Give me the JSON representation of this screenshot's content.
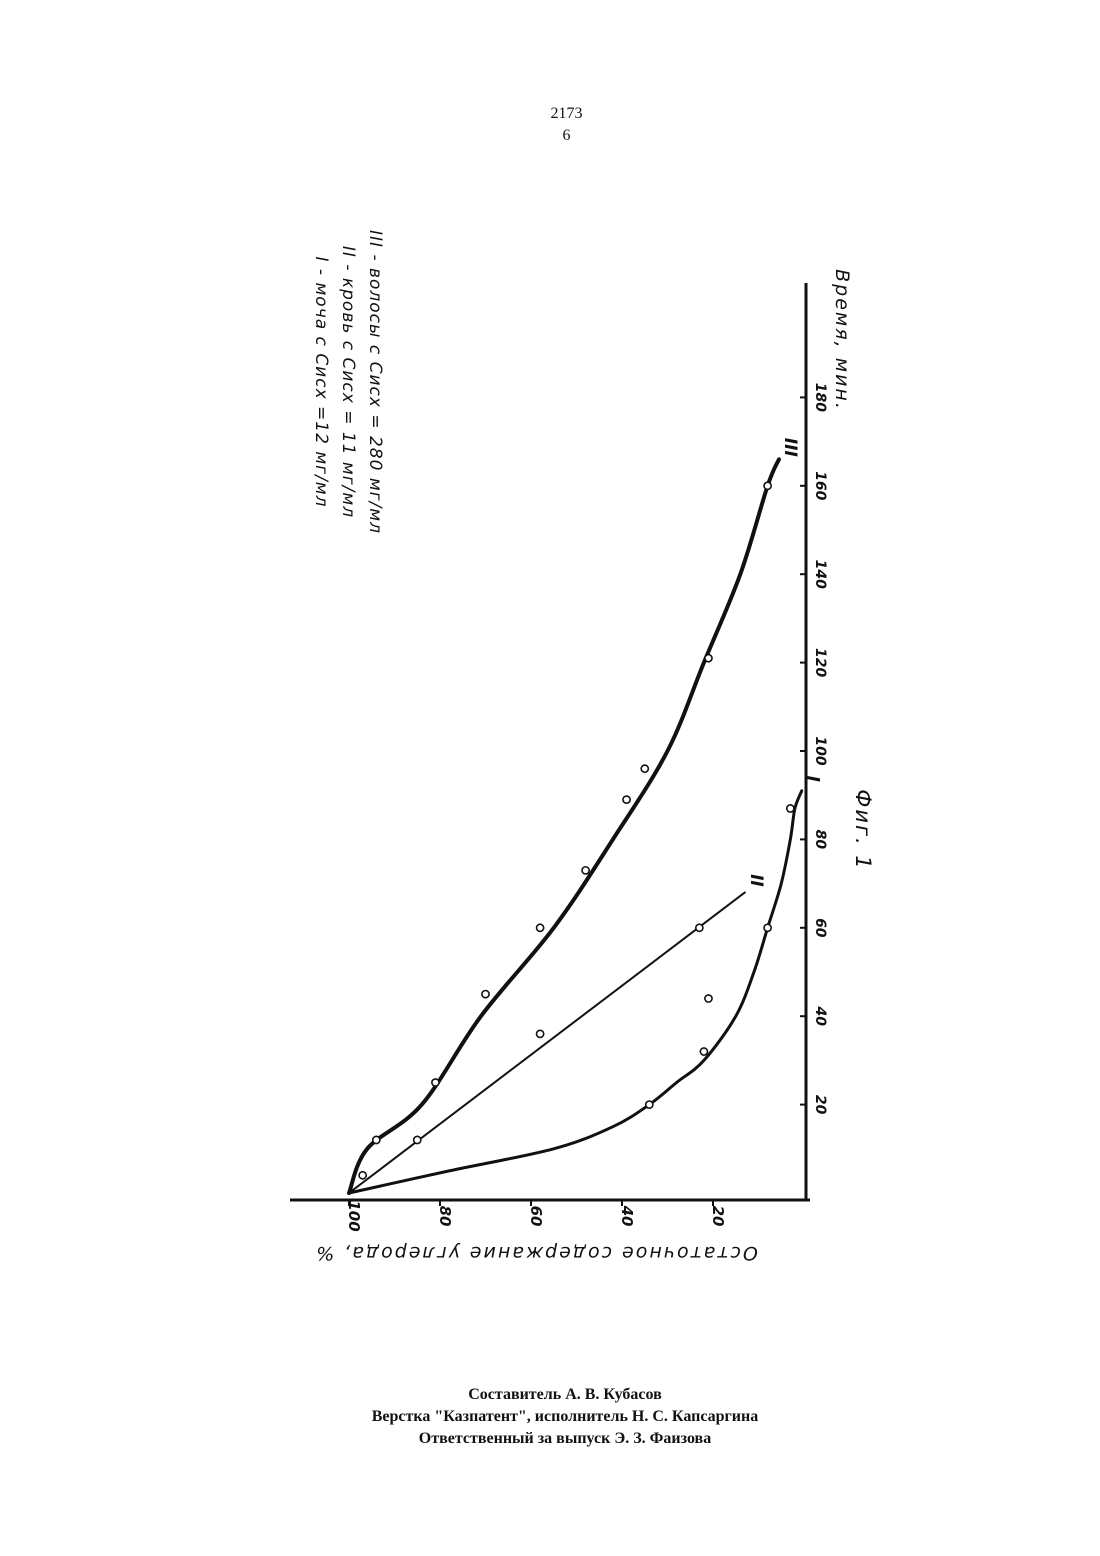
{
  "header": {
    "patent_number": "2173",
    "page_number": "6"
  },
  "figure": {
    "caption": "Фиг. 1",
    "legend": [
      "I - моча с Сисх =12 мг/мл",
      "II - кровь с Сисх = 11 мг/мл",
      "III - волосы с Сисх = 280 мг/мл"
    ]
  },
  "chart_data": {
    "type": "line",
    "xlabel": "Время, мин.",
    "ylabel": "Остаточное содержание углерода, %",
    "x_ticks": [
      "20",
      "40",
      "60",
      "80",
      "100",
      "120",
      "140",
      "160",
      "180"
    ],
    "y_ticks": [
      "100",
      "80",
      "60",
      "40",
      "20"
    ],
    "xlim": [
      0,
      190
    ],
    "ylim": [
      0,
      100
    ],
    "series": [
      {
        "name": "I",
        "smooth": true,
        "line": [
          [
            0,
            100
          ],
          [
            5,
            78
          ],
          [
            10,
            55
          ],
          [
            15,
            42
          ],
          [
            20,
            34
          ],
          [
            25,
            28
          ],
          [
            30,
            22
          ],
          [
            40,
            15
          ],
          [
            50,
            11
          ],
          [
            60,
            8
          ],
          [
            70,
            5
          ],
          [
            80,
            3
          ],
          [
            87,
            2
          ],
          [
            91,
            0.5
          ]
        ],
        "points": [
          [
            20,
            34
          ],
          [
            32,
            22
          ],
          [
            44,
            21
          ],
          [
            60,
            8
          ],
          [
            87,
            3
          ]
        ]
      },
      {
        "name": "II",
        "smooth": false,
        "line": [
          [
            0,
            100
          ],
          [
            68,
            13
          ]
        ],
        "points": [
          [
            12,
            85
          ],
          [
            36,
            58
          ],
          [
            60,
            23
          ]
        ]
      },
      {
        "name": "III",
        "smooth": true,
        "line": [
          [
            0,
            100
          ],
          [
            10,
            96
          ],
          [
            20,
            84
          ],
          [
            40,
            71
          ],
          [
            60,
            55
          ],
          [
            80,
            42
          ],
          [
            100,
            30
          ],
          [
            120,
            22
          ],
          [
            140,
            14
          ],
          [
            160,
            8
          ],
          [
            166,
            5.5
          ]
        ],
        "points": [
          [
            4,
            97
          ],
          [
            12,
            94
          ],
          [
            25,
            81
          ],
          [
            45,
            70
          ],
          [
            60,
            58
          ],
          [
            73,
            48
          ],
          [
            89,
            39
          ],
          [
            96,
            35
          ],
          [
            121,
            21
          ],
          [
            160,
            8
          ]
        ]
      }
    ]
  },
  "credits": {
    "compiler": "Составитель А. В. Кубасов",
    "layout": "Верстка \"Казпатент\", исполнитель Н. С. Капсаргина",
    "responsible": "Ответственный за выпуск Э. З. Фаизова"
  }
}
